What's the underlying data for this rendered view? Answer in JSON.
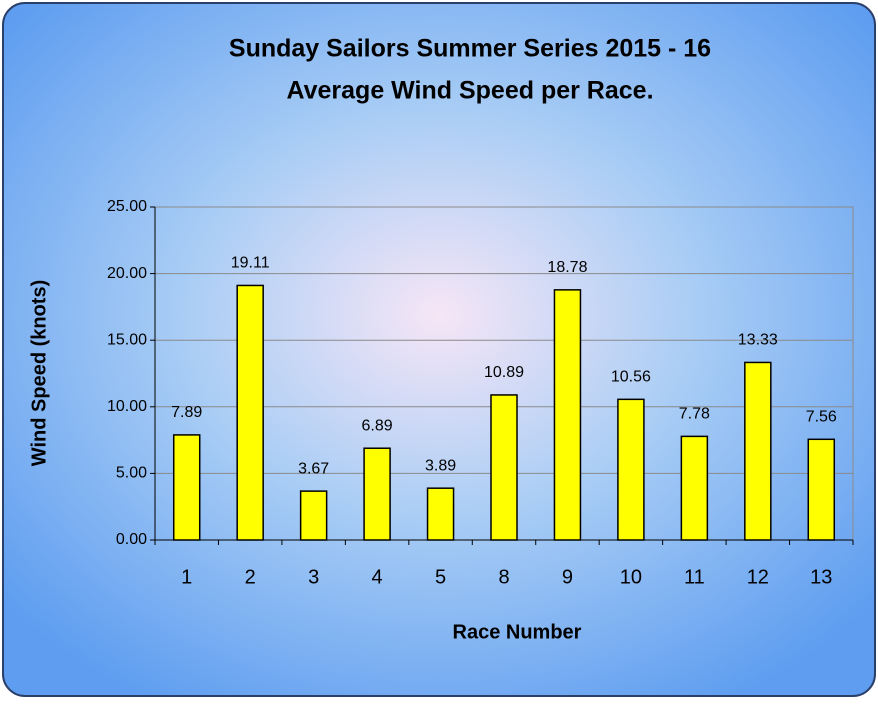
{
  "chart_data": {
    "type": "bar",
    "title": [
      "Sunday Sailors Summer Series 2015 - 16",
      "Average Wind Speed per Race."
    ],
    "x_label": "Race Number",
    "y_label": "Wind Speed (knots)",
    "categories": [
      "1",
      "2",
      "3",
      "4",
      "5",
      "8",
      "9",
      "10",
      "11",
      "12",
      "13"
    ],
    "values": [
      7.89,
      19.11,
      3.67,
      6.89,
      3.89,
      10.89,
      18.78,
      10.56,
      7.78,
      13.33,
      7.56
    ],
    "color": "#ffff00",
    "ylim": [
      0,
      25
    ],
    "yticks": [
      {
        "value": 0,
        "label": "0.00"
      },
      {
        "value": 5,
        "label": "5.00"
      },
      {
        "value": 10,
        "label": "10.00"
      },
      {
        "value": 15,
        "label": "15.00"
      },
      {
        "value": 20,
        "label": "20.00"
      },
      {
        "value": 25,
        "label": "25.00"
      }
    ],
    "grid": true
  }
}
